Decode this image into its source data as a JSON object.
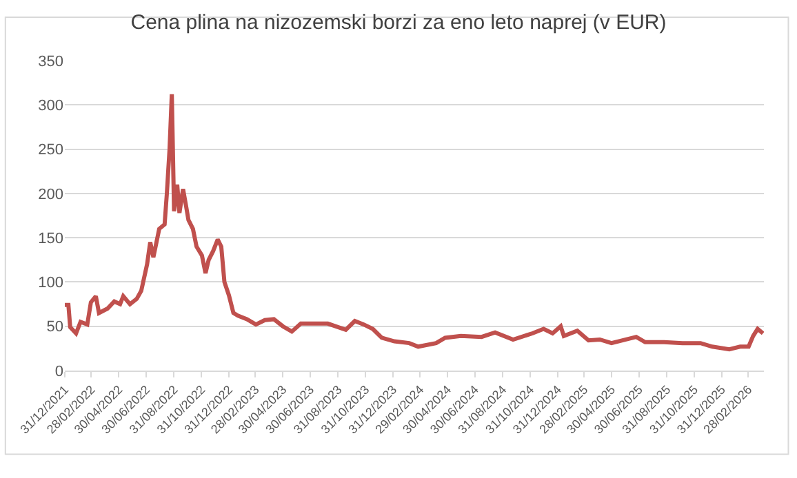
{
  "chart_data": {
    "type": "line",
    "title": "Cena plina na nizozemski borzi za eno leto naprej (v EUR)",
    "x": [
      "2021-12-31",
      "2022-01-08",
      "2022-01-12",
      "2022-01-25",
      "2022-02-04",
      "2022-02-19",
      "2022-02-27",
      "2022-03-10",
      "2022-03-17",
      "2022-04-05",
      "2022-04-20",
      "2022-05-03",
      "2022-05-10",
      "2022-05-25",
      "2022-06-09",
      "2022-06-19",
      "2022-07-02",
      "2022-07-09",
      "2022-07-16",
      "2022-07-29",
      "2022-08-10",
      "2022-08-15",
      "2022-08-21",
      "2022-08-26",
      "2022-08-31",
      "2022-09-07",
      "2022-09-12",
      "2022-09-20",
      "2022-09-27",
      "2022-10-02",
      "2022-10-12",
      "2022-10-20",
      "2022-11-01",
      "2022-11-09",
      "2022-11-16",
      "2022-11-26",
      "2022-12-06",
      "2022-12-14",
      "2022-12-21",
      "2022-12-31",
      "2023-01-10",
      "2023-01-20",
      "2023-02-09",
      "2023-03-01",
      "2023-03-21",
      "2023-04-10",
      "2023-04-30",
      "2023-05-20",
      "2023-06-09",
      "2023-07-09",
      "2023-08-08",
      "2023-09-17",
      "2023-10-07",
      "2023-10-27",
      "2023-11-16",
      "2023-12-06",
      "2024-01-03",
      "2024-02-05",
      "2024-02-25",
      "2024-04-05",
      "2024-04-25",
      "2024-05-30",
      "2024-07-15",
      "2024-08-14",
      "2024-09-23",
      "2024-11-05",
      "2024-11-30",
      "2024-12-20",
      "2025-01-07",
      "2025-01-14",
      "2025-02-13",
      "2025-03-10",
      "2025-04-04",
      "2025-04-30",
      "2025-06-24",
      "2025-07-14",
      "2025-08-25",
      "2025-10-05",
      "2025-11-14",
      "2025-12-10",
      "2026-01-17",
      "2026-02-10",
      "2026-03-01",
      "2026-03-11",
      "2026-03-21",
      "2026-04-02"
    ],
    "series": [
      {
        "color": "#c0504d",
        "values": [
          74,
          74,
          49,
          42,
          55,
          52,
          77,
          84,
          65,
          70,
          78,
          75,
          84,
          75,
          81,
          90,
          120,
          145,
          128,
          160,
          165,
          200,
          250,
          312,
          180,
          210,
          178,
          205,
          185,
          170,
          160,
          140,
          130,
          110,
          125,
          135,
          148,
          140,
          100,
          85,
          65,
          62,
          58,
          52,
          57,
          58,
          50,
          44,
          53,
          53,
          53,
          46,
          56,
          52,
          47,
          37,
          33,
          31,
          27,
          31,
          37,
          39,
          38,
          43,
          35,
          42,
          47,
          42,
          50,
          39,
          45,
          34,
          35,
          31,
          38,
          32,
          32,
          31,
          31,
          27,
          24,
          27,
          27,
          39,
          47,
          42
        ]
      }
    ],
    "xlim": [
      "2021-12-31",
      "2026-04-04"
    ],
    "xticks": [
      {
        "value": "2021-12-31",
        "label": "31/12/2021"
      },
      {
        "value": "2022-02-28",
        "label": "28/02/2022"
      },
      {
        "value": "2022-04-30",
        "label": "30/04/2022"
      },
      {
        "value": "2022-06-30",
        "label": "30/06/2022"
      },
      {
        "value": "2022-08-31",
        "label": "31/08/2022"
      },
      {
        "value": "2022-10-31",
        "label": "31/10/2022"
      },
      {
        "value": "2022-12-31",
        "label": "31/12/2022"
      },
      {
        "value": "2023-02-28",
        "label": "28/02/2023"
      },
      {
        "value": "2023-04-30",
        "label": "30/04/2023"
      },
      {
        "value": "2023-06-30",
        "label": "30/06/2023"
      },
      {
        "value": "2023-08-31",
        "label": "31/08/2023"
      },
      {
        "value": "2023-10-31",
        "label": "31/10/2023"
      },
      {
        "value": "2023-12-31",
        "label": "31/12/2023"
      },
      {
        "value": "2024-02-29",
        "label": "29/02/2024"
      },
      {
        "value": "2024-04-30",
        "label": "30/04/2024"
      },
      {
        "value": "2024-06-30",
        "label": "30/06/2024"
      },
      {
        "value": "2024-08-31",
        "label": "31/08/2024"
      },
      {
        "value": "2024-10-31",
        "label": "31/10/2024"
      },
      {
        "value": "2024-12-31",
        "label": "31/12/2024"
      },
      {
        "value": "2025-02-28",
        "label": "28/02/2025"
      },
      {
        "value": "2025-04-30",
        "label": "30/04/2025"
      },
      {
        "value": "2025-06-30",
        "label": "30/06/2025"
      },
      {
        "value": "2025-08-31",
        "label": "31/08/2025"
      },
      {
        "value": "2025-10-31",
        "label": "31/10/2025"
      },
      {
        "value": "2025-12-31",
        "label": "31/12/2025"
      },
      {
        "value": "2026-02-28",
        "label": "28/02/2026"
      }
    ],
    "ylim": [
      0,
      350
    ],
    "yticks": [
      0,
      50,
      100,
      150,
      200,
      250,
      300,
      350
    ],
    "grid": "y",
    "legend": false,
    "marker": "none",
    "line_style": "solid"
  }
}
